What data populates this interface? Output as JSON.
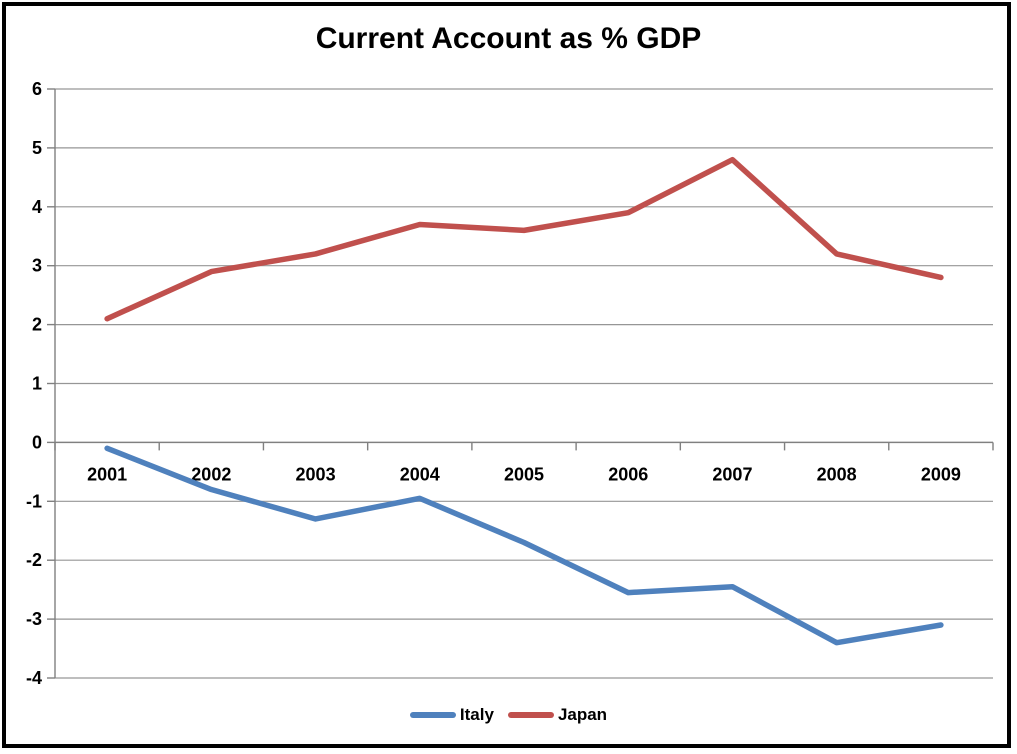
{
  "chart_data": {
    "type": "line",
    "title": "Current Account as % GDP",
    "categories": [
      "2001",
      "2002",
      "2003",
      "2004",
      "2005",
      "2006",
      "2007",
      "2008",
      "2009"
    ],
    "series": [
      {
        "name": "Italy",
        "color": "#4F81BD",
        "values": [
          -0.1,
          -0.8,
          -1.3,
          -0.95,
          -1.7,
          -2.55,
          -2.45,
          -3.4,
          -3.1
        ]
      },
      {
        "name": "Japan",
        "color": "#C0504D",
        "values": [
          2.1,
          2.9,
          3.2,
          3.7,
          3.6,
          3.9,
          4.8,
          3.2,
          2.8
        ]
      }
    ],
    "xlabel": "",
    "ylabel": "",
    "ylim": [
      -4,
      6
    ],
    "yticks": [
      6,
      5,
      4,
      3,
      2,
      1,
      0,
      -1,
      -2,
      -3,
      -4
    ],
    "grid": true,
    "legend_position": "bottom",
    "gridline_color": "#969696",
    "axis_color": "#808080",
    "text_color": "#000000",
    "background_color": "#FFFFFF",
    "frame_border_color": "#000000"
  }
}
